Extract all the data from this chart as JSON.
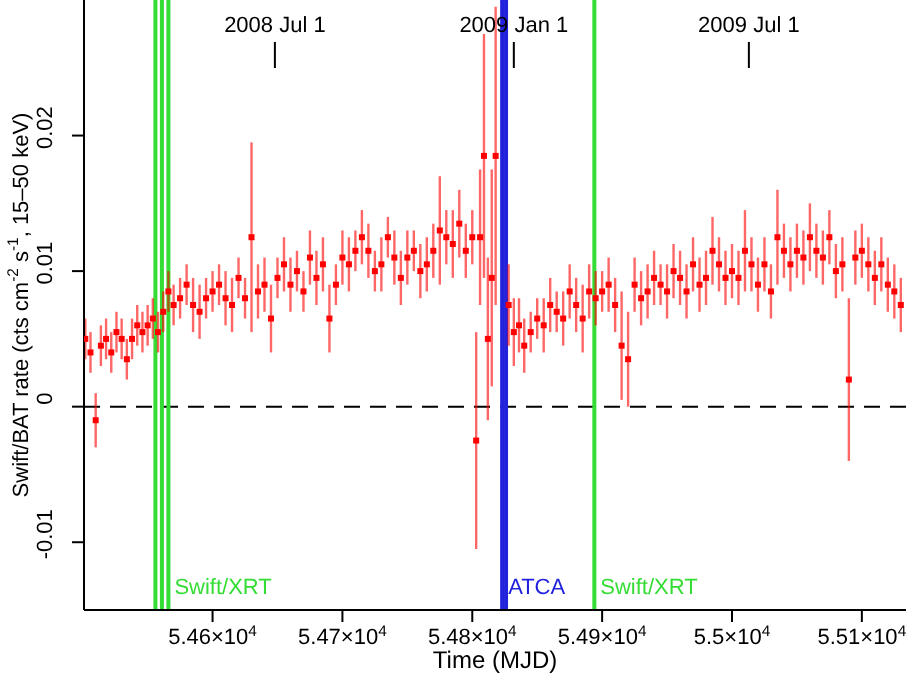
{
  "chart_data": {
    "type": "scatter",
    "xlabel": "Time (MJD)",
    "ylabel": "Swift/BAT rate (cts cm$^{-2}$ s$^{-1}$, 15–50 keV)",
    "marker": "square",
    "annotations": [
      {
        "text": "2008 Jul 1",
        "x": 54648
      },
      {
        "text": "2009 Jan 1",
        "x": 54832
      },
      {
        "text": "2009 Jul 1",
        "x": 55013
      }
    ],
    "xlim": [
      54501,
      55134
    ],
    "ylim": [
      -0.015,
      0.03
    ],
    "xticks": [
      {
        "value": 54600,
        "label": "5.46×10$^{4}$"
      },
      {
        "value": 54700,
        "label": "5.47×10$^{4}$"
      },
      {
        "value": 54800,
        "label": "5.48×10$^{4}$"
      },
      {
        "value": 54900,
        "label": "5.49×10$^{4}$"
      },
      {
        "value": 55000,
        "label": "5.5×10$^{4}$"
      },
      {
        "value": 55100,
        "label": "5.51×10$^{4}$"
      }
    ],
    "yticks": [
      -0.01,
      0,
      0.01,
      0.02
    ],
    "ref_lines": [
      {
        "axis": "y",
        "value": 0,
        "color": "#000000",
        "line_style": "dashed"
      },
      {
        "axis": "x",
        "value": 54556,
        "color": "#33dd33"
      },
      {
        "axis": "x",
        "value": 54561,
        "color": "#33dd33"
      },
      {
        "axis": "x",
        "value": 54566,
        "color": "#33dd33",
        "label": "Swift/XRT"
      },
      {
        "axis": "x",
        "value": 54823,
        "color": "#2222dd",
        "label": "ATCA"
      },
      {
        "axis": "x",
        "value": 54826,
        "color": "#2222dd"
      },
      {
        "axis": "x",
        "value": 54894,
        "color": "#33dd33",
        "label": "Swift/XRT"
      }
    ],
    "series": [
      {
        "color": "#ff0000",
        "x": [
          54502,
          54506,
          54510,
          54514,
          54518,
          54522,
          54526,
          54530,
          54534,
          54538,
          54542,
          54546,
          54550,
          54554,
          54558,
          54562,
          54566,
          54570,
          54575,
          54580,
          54585,
          54590,
          54595,
          54600,
          54605,
          54610,
          54615,
          54620,
          54625,
          54630,
          54635,
          54640,
          54645,
          54650,
          54655,
          54660,
          54665,
          54670,
          54675,
          54680,
          54685,
          54690,
          54695,
          54700,
          54705,
          54710,
          54715,
          54720,
          54725,
          54730,
          54735,
          54740,
          54745,
          54750,
          54755,
          54760,
          54765,
          54770,
          54775,
          54780,
          54785,
          54790,
          54795,
          54800,
          54803,
          54806,
          54809,
          54812,
          54815,
          54818,
          54828,
          54832,
          54836,
          54840,
          54845,
          54850,
          54855,
          54860,
          54865,
          54870,
          54875,
          54880,
          54885,
          54890,
          54895,
          54900,
          54905,
          54910,
          54915,
          54920,
          54925,
          54930,
          54935,
          54940,
          54945,
          54950,
          54955,
          54960,
          54965,
          54970,
          54975,
          54980,
          54985,
          54990,
          54995,
          55000,
          55005,
          55010,
          55015,
          55020,
          55025,
          55030,
          55035,
          55040,
          55045,
          55050,
          55055,
          55060,
          55065,
          55070,
          55075,
          55080,
          55085,
          55090,
          55095,
          55100,
          55105,
          55110,
          55115,
          55120,
          55125,
          55130
        ],
        "values": [
          0.005,
          0.004,
          -0.001,
          0.0045,
          0.005,
          0.004,
          0.0055,
          0.005,
          0.0035,
          0.005,
          0.006,
          0.0055,
          0.006,
          0.0065,
          0.0055,
          0.007,
          0.0085,
          0.0075,
          0.008,
          0.009,
          0.0075,
          0.007,
          0.008,
          0.0085,
          0.009,
          0.008,
          0.0075,
          0.0095,
          0.008,
          0.0125,
          0.0085,
          0.009,
          0.0065,
          0.0095,
          0.0105,
          0.009,
          0.01,
          0.0085,
          0.011,
          0.0095,
          0.0105,
          0.0065,
          0.009,
          0.011,
          0.0105,
          0.0115,
          0.0125,
          0.0115,
          0.01,
          0.0105,
          0.0125,
          0.011,
          0.0095,
          0.011,
          0.0115,
          0.01,
          0.0105,
          0.0115,
          0.013,
          0.0125,
          0.012,
          0.0135,
          0.0115,
          0.0125,
          -0.0025,
          0.0125,
          0.0185,
          0.005,
          0.0095,
          0.0185,
          0.0075,
          0.0055,
          0.006,
          0.0045,
          0.0055,
          0.0065,
          0.006,
          0.0075,
          0.007,
          0.0065,
          0.0085,
          0.0075,
          0.0065,
          0.0085,
          0.008,
          0.0085,
          0.009,
          0.0075,
          0.0045,
          0.0035,
          0.009,
          0.008,
          0.0085,
          0.0095,
          0.009,
          0.0085,
          0.01,
          0.0095,
          0.0085,
          0.0105,
          0.009,
          0.0095,
          0.0115,
          0.0105,
          0.0095,
          0.01,
          0.0095,
          0.0115,
          0.0105,
          0.009,
          0.0105,
          0.0085,
          0.0125,
          0.0115,
          0.0105,
          0.0115,
          0.011,
          0.0125,
          0.0115,
          0.011,
          0.0125,
          0.01,
          0.0105,
          0.002,
          0.011,
          0.0115,
          0.0105,
          0.0095,
          0.0105,
          0.009,
          0.0085,
          0.0075
        ],
        "errors": [
          0.0015,
          0.0015,
          0.002,
          0.0015,
          0.0015,
          0.0015,
          0.0015,
          0.0015,
          0.0015,
          0.0015,
          0.0015,
          0.0015,
          0.0015,
          0.0015,
          0.0015,
          0.0015,
          0.0015,
          0.0015,
          0.0015,
          0.0015,
          0.002,
          0.002,
          0.0015,
          0.0015,
          0.0015,
          0.002,
          0.002,
          0.0015,
          0.0015,
          0.007,
          0.002,
          0.002,
          0.0025,
          0.0015,
          0.002,
          0.002,
          0.0015,
          0.0015,
          0.002,
          0.002,
          0.002,
          0.0025,
          0.0015,
          0.002,
          0.002,
          0.0015,
          0.002,
          0.002,
          0.0015,
          0.002,
          0.0015,
          0.002,
          0.002,
          0.002,
          0.0015,
          0.002,
          0.002,
          0.002,
          0.004,
          0.002,
          0.0025,
          0.0025,
          0.002,
          0.002,
          0.008,
          0.005,
          0.009,
          0.006,
          0.008,
          0.011,
          0.003,
          0.0025,
          0.002,
          0.002,
          0.0015,
          0.0015,
          0.002,
          0.002,
          0.0015,
          0.002,
          0.002,
          0.002,
          0.0025,
          0.002,
          0.002,
          0.0015,
          0.002,
          0.002,
          0.004,
          0.0035,
          0.002,
          0.002,
          0.002,
          0.002,
          0.0015,
          0.002,
          0.002,
          0.002,
          0.002,
          0.002,
          0.002,
          0.002,
          0.0025,
          0.002,
          0.002,
          0.002,
          0.002,
          0.003,
          0.002,
          0.002,
          0.002,
          0.002,
          0.0035,
          0.002,
          0.002,
          0.002,
          0.002,
          0.0025,
          0.002,
          0.002,
          0.002,
          0.002,
          0.002,
          0.006,
          0.002,
          0.002,
          0.002,
          0.002,
          0.002,
          0.002,
          0.002,
          0.002
        ]
      }
    ]
  }
}
